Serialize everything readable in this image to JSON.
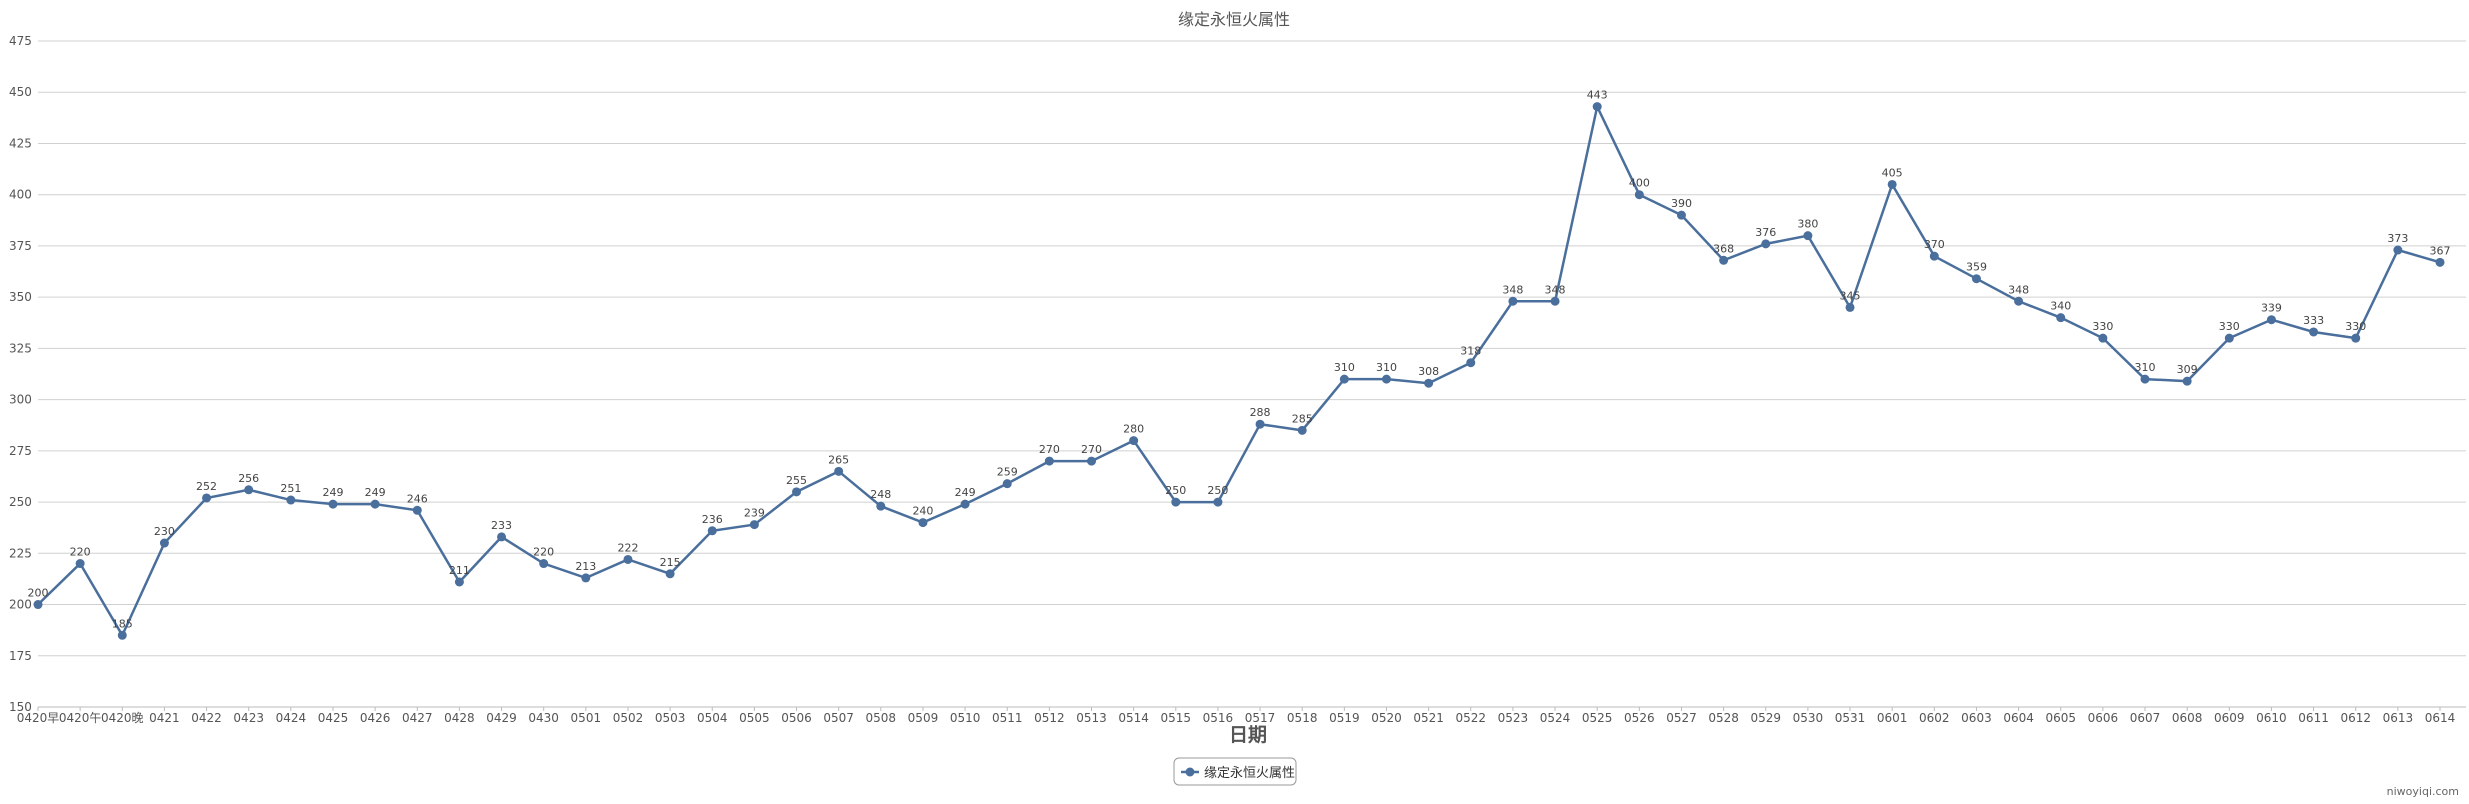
{
  "chart_data": {
    "type": "line",
    "title": "缘定永恒火属性",
    "xlabel": "日期",
    "ylabel": "",
    "ylim": [
      150,
      475
    ],
    "y_ticks": [
      150,
      175,
      200,
      225,
      250,
      275,
      300,
      325,
      350,
      375,
      400,
      425,
      450,
      475
    ],
    "grid": true,
    "legend_position": "bottom-center",
    "watermark": "niwoyiqi.com",
    "colors": {
      "series": "#4a6f9c",
      "grid": "#d0d0d0",
      "text": "#555555",
      "title": "#555555",
      "xlabel": "#555555"
    },
    "categories": [
      "0420早",
      "0420午",
      "0420晚",
      "0421",
      "0422",
      "0423",
      "0424",
      "0425",
      "0426",
      "0427",
      "0428",
      "0429",
      "0430",
      "0501",
      "0502",
      "0503",
      "0504",
      "0505",
      "0506",
      "0507",
      "0508",
      "0509",
      "0510",
      "0511",
      "0512",
      "0513",
      "0514",
      "0515",
      "0516",
      "0517",
      "0518",
      "0519",
      "0520",
      "0521",
      "0522",
      "0523",
      "0524",
      "0525",
      "0526",
      "0527",
      "0528",
      "0529",
      "0530",
      "0531",
      "0601",
      "0602",
      "0603",
      "0604",
      "0605",
      "0606",
      "0607",
      "0608",
      "0609",
      "0610",
      "0611",
      "0612",
      "0613",
      "0614"
    ],
    "series": [
      {
        "name": "缘定永恒火属性",
        "values": [
          200,
          220,
          185,
          230,
          252,
          256,
          251,
          249,
          249,
          246,
          211,
          233,
          220,
          213,
          222,
          215,
          236,
          239,
          255,
          265,
          248,
          240,
          249,
          259,
          270,
          270,
          280,
          250,
          250,
          288,
          285,
          310,
          310,
          308,
          318,
          348,
          348,
          443,
          400,
          390,
          368,
          376,
          380,
          345,
          405,
          370,
          359,
          348,
          340,
          330,
          310,
          309,
          330,
          339,
          333,
          330,
          373,
          367
        ]
      }
    ]
  }
}
